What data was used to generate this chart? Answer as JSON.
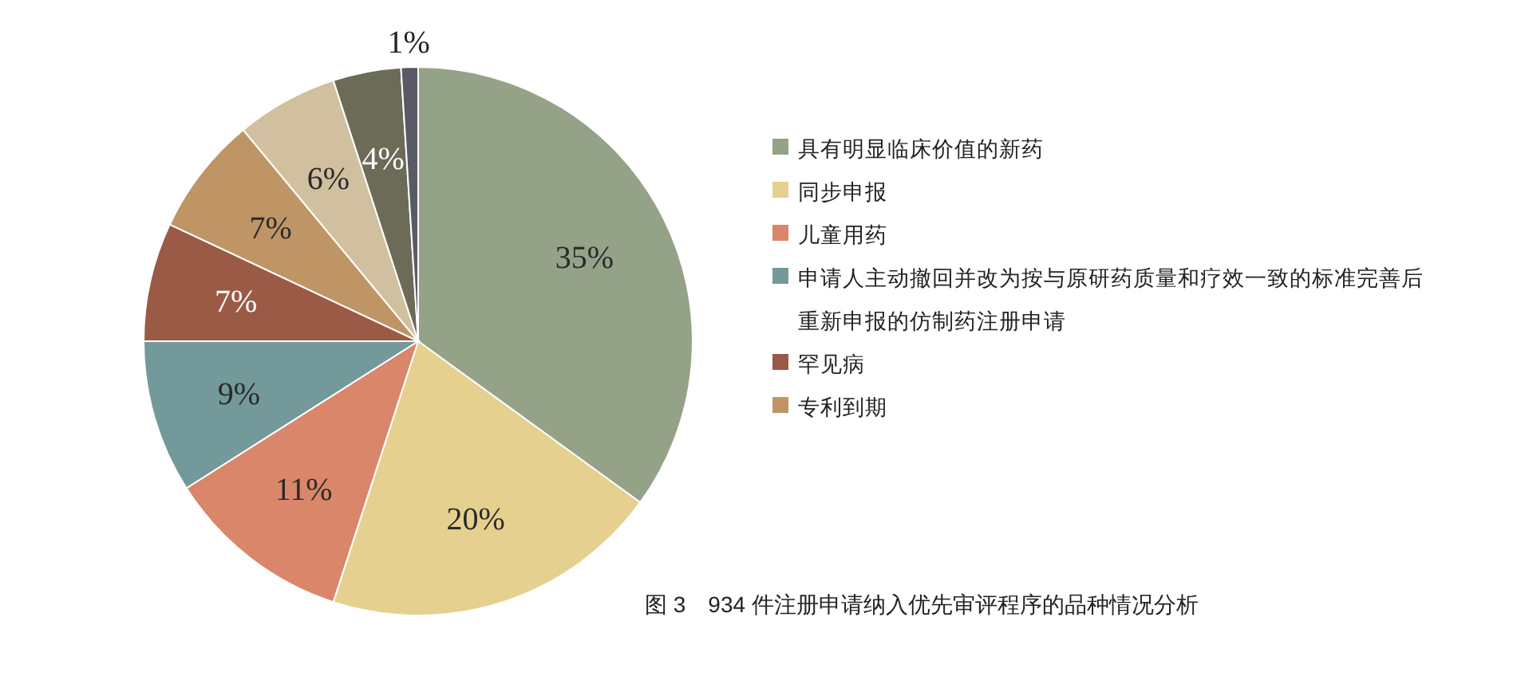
{
  "chart_data": {
    "type": "pie",
    "categories": [
      "具有明显临床价值的新药",
      "同步申报",
      "儿童用药",
      "申请人主动撤回并改为按与原研药质量和疗效一致的标准完善后重新申报的仿制药注册申请",
      "罕见病",
      "专利到期",
      null,
      null,
      null
    ],
    "values": [
      35,
      20,
      11,
      9,
      7,
      7,
      6,
      4,
      1
    ],
    "colors": [
      "#94a387",
      "#e6d08f",
      "#d9866a",
      "#73999a",
      "#9a5a45",
      "#bf9565",
      "#d0c09f",
      "#6b6b58",
      "#5a5a66"
    ],
    "value_labels": [
      "35%",
      "20%",
      "11%",
      "9%",
      "7%",
      "7%",
      "6%",
      "4%",
      "1%"
    ],
    "legend": "right",
    "annotations": [
      "图 3　934 件注册申请纳入优先审评程序的品种情况分析"
    ]
  }
}
